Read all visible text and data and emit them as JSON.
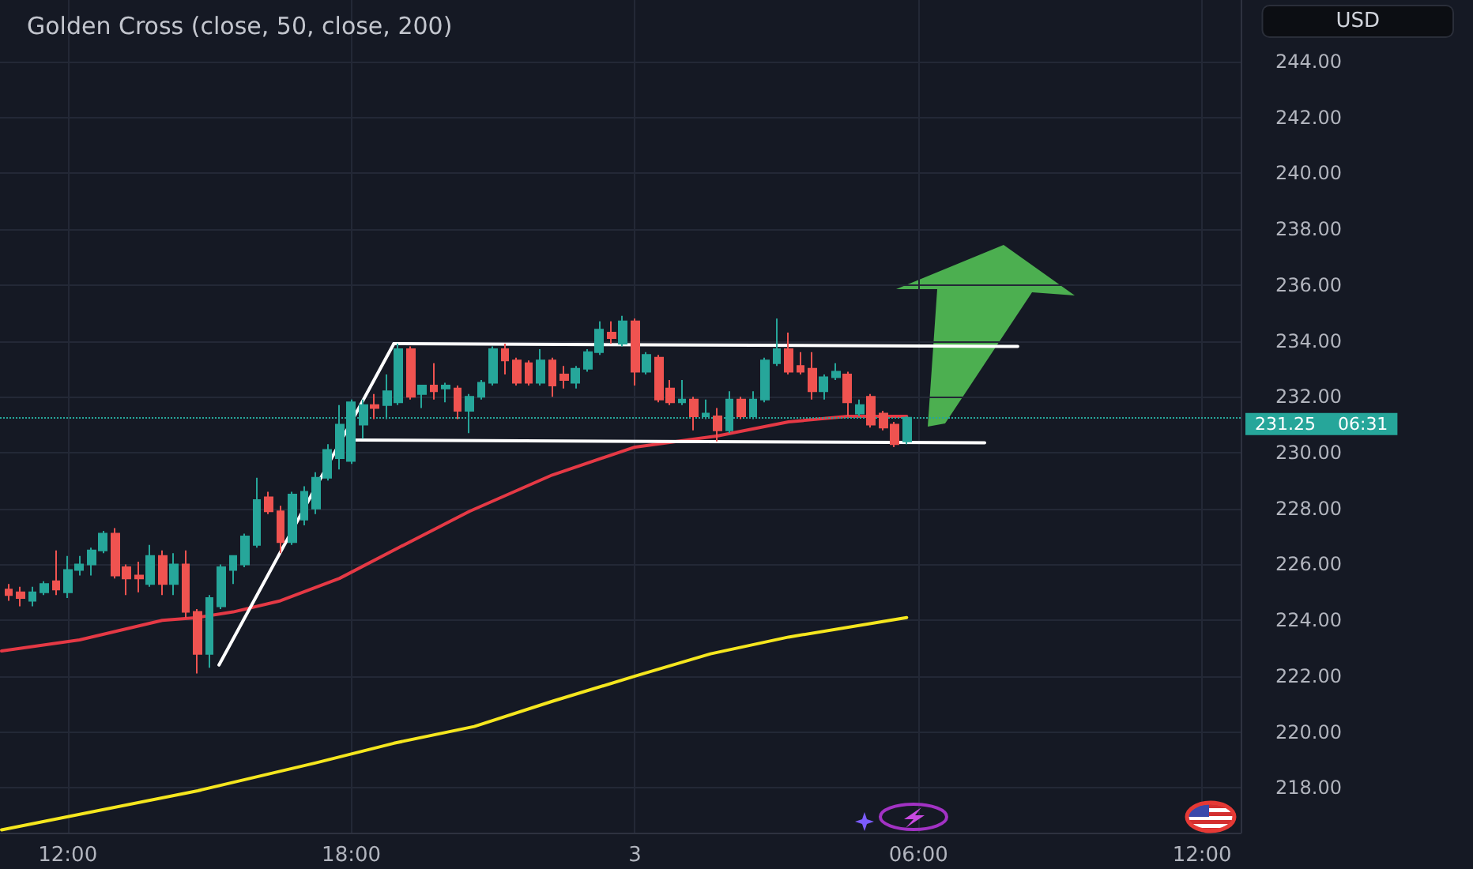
{
  "chart_data": {
    "type": "candlestick",
    "title": "Golden Cross (close, 50, close, 200)",
    "ylabel": "USD",
    "x": [
      "--12-02T10:45",
      "--12-02T11:00",
      "--12-02T11:15",
      "--12-02T11:30",
      "--12-02T11:45",
      "--12-02T12:00",
      "--12-02T12:15",
      "--12-02T12:30",
      "--12-02T12:45",
      "--12-02T13:00",
      "--12-02T13:15",
      "--12-02T13:30",
      "--12-02T13:45",
      "--12-02T14:00",
      "--12-02T14:15",
      "--12-02T14:30",
      "--12-02T14:45",
      "--12-02T15:00",
      "--12-02T15:15",
      "--12-02T15:30",
      "--12-02T15:45",
      "--12-02T16:00",
      "--12-02T16:15",
      "--12-02T16:30",
      "--12-02T16:45",
      "--12-02T17:00",
      "--12-02T17:15",
      "--12-02T17:30",
      "--12-02T17:45",
      "--12-02T18:00",
      "--12-02T18:15",
      "--12-02T18:30",
      "--12-02T18:45",
      "--12-02T19:00",
      "--12-02T19:15",
      "--12-02T19:30",
      "--12-02T19:45",
      "--12-02T20:00",
      "--12-02T20:15",
      "--12-02T20:30",
      "--12-02T20:45",
      "--12-02T21:00",
      "--12-02T21:15",
      "--12-02T21:30",
      "--12-02T21:45",
      "--12-02T22:00",
      "--12-02T22:15",
      "--12-02T22:30",
      "--12-02T22:45",
      "--12-02T23:00",
      "--12-02T23:15",
      "--12-02T23:30",
      "--12-02T23:45",
      "--12-03T00:00",
      "--12-03T00:15",
      "--12-03T00:30",
      "--12-03T00:45",
      "--12-03T01:00",
      "--12-03T01:15",
      "--12-03T01:30",
      "--12-03T01:45",
      "--12-03T02:00",
      "--12-03T02:15",
      "--12-03T02:30",
      "--12-03T02:45",
      "--12-03T03:00",
      "--12-03T03:15",
      "--12-03T03:30",
      "--12-03T03:45",
      "--12-03T04:00",
      "--12-03T04:15",
      "--12-03T04:30",
      "--12-03T04:45",
      "--12-03T05:00",
      "--12-03T05:15",
      "--12-03T05:30",
      "--12-03T05:45"
    ],
    "ohlc": [
      [
        225.1,
        225.3,
        224.7,
        224.9
      ],
      [
        225.0,
        225.2,
        224.5,
        224.8
      ],
      [
        224.7,
        225.2,
        224.5,
        225.0
      ],
      [
        225.0,
        225.4,
        224.9,
        225.3
      ],
      [
        225.4,
        226.5,
        224.9,
        225.1
      ],
      [
        225.0,
        226.3,
        224.8,
        225.8
      ],
      [
        225.8,
        226.3,
        225.6,
        226.0
      ],
      [
        226.0,
        226.6,
        225.6,
        226.5
      ],
      [
        226.5,
        227.2,
        226.4,
        227.1
      ],
      [
        227.1,
        227.3,
        225.5,
        225.6
      ],
      [
        225.9,
        226.0,
        224.9,
        225.5
      ],
      [
        225.6,
        226.1,
        225.0,
        225.5
      ],
      [
        225.3,
        226.7,
        225.2,
        226.3
      ],
      [
        226.3,
        226.5,
        224.9,
        225.3
      ],
      [
        225.3,
        226.4,
        224.9,
        226.0
      ],
      [
        226.0,
        226.5,
        224.1,
        224.3
      ],
      [
        224.3,
        224.4,
        222.1,
        222.8
      ],
      [
        222.8,
        224.9,
        222.3,
        224.8
      ],
      [
        224.5,
        226.0,
        224.4,
        225.9
      ],
      [
        225.8,
        226.3,
        225.3,
        226.3
      ],
      [
        226.0,
        227.1,
        225.9,
        227.0
      ],
      [
        226.7,
        229.1,
        226.6,
        228.3
      ],
      [
        228.4,
        228.6,
        227.8,
        227.9
      ],
      [
        227.9,
        228.1,
        226.4,
        226.8
      ],
      [
        226.8,
        228.6,
        226.7,
        228.5
      ],
      [
        227.6,
        228.8,
        227.4,
        228.6
      ],
      [
        228.0,
        229.3,
        227.8,
        229.1
      ],
      [
        229.1,
        230.3,
        229.0,
        230.1
      ],
      [
        229.8,
        231.7,
        229.4,
        231.0
      ],
      [
        229.7,
        231.9,
        229.6,
        231.8
      ],
      [
        231.0,
        231.9,
        230.5,
        231.7
      ],
      [
        231.7,
        232.1,
        231.2,
        231.6
      ],
      [
        231.7,
        232.8,
        231.2,
        232.2
      ],
      [
        231.8,
        233.9,
        231.7,
        233.7
      ],
      [
        233.7,
        233.8,
        231.9,
        232.0
      ],
      [
        232.1,
        232.4,
        231.6,
        232.4
      ],
      [
        232.4,
        233.2,
        231.9,
        232.2
      ],
      [
        232.3,
        232.5,
        231.8,
        232.4
      ],
      [
        232.3,
        232.4,
        231.2,
        231.5
      ],
      [
        231.5,
        232.1,
        230.7,
        232.0
      ],
      [
        232.0,
        232.6,
        231.9,
        232.5
      ],
      [
        232.5,
        233.8,
        232.4,
        233.7
      ],
      [
        233.7,
        233.9,
        232.8,
        233.3
      ],
      [
        233.3,
        233.4,
        232.4,
        232.5
      ],
      [
        233.2,
        233.3,
        232.4,
        232.5
      ],
      [
        232.5,
        233.7,
        232.4,
        233.3
      ],
      [
        233.3,
        233.4,
        232.0,
        232.4
      ],
      [
        232.8,
        233.1,
        232.3,
        232.6
      ],
      [
        232.5,
        233.1,
        232.3,
        233.0
      ],
      [
        233.0,
        233.7,
        232.9,
        233.6
      ],
      [
        233.6,
        234.7,
        233.5,
        234.4
      ],
      [
        234.3,
        234.7,
        233.9,
        234.1
      ],
      [
        233.9,
        234.9,
        233.8,
        234.7
      ],
      [
        234.7,
        234.8,
        232.4,
        232.9
      ],
      [
        232.9,
        233.6,
        232.8,
        233.5
      ],
      [
        233.4,
        233.5,
        231.8,
        231.9
      ],
      [
        232.3,
        232.6,
        231.7,
        231.8
      ],
      [
        231.8,
        232.6,
        231.7,
        231.9
      ],
      [
        231.9,
        232.0,
        230.8,
        231.3
      ],
      [
        231.3,
        231.9,
        231.2,
        231.4
      ],
      [
        231.3,
        231.6,
        230.4,
        230.8
      ],
      [
        230.8,
        232.2,
        230.7,
        231.9
      ],
      [
        231.9,
        232.0,
        231.2,
        231.3
      ],
      [
        231.3,
        232.2,
        231.2,
        231.9
      ],
      [
        231.9,
        233.4,
        231.8,
        233.3
      ],
      [
        233.2,
        234.8,
        233.1,
        233.7
      ],
      [
        233.7,
        234.3,
        232.8,
        232.9
      ],
      [
        233.1,
        233.6,
        232.8,
        232.9
      ],
      [
        233.0,
        233.6,
        231.9,
        232.2
      ],
      [
        232.2,
        232.8,
        231.9,
        232.7
      ],
      [
        232.7,
        233.2,
        232.6,
        232.9
      ],
      [
        232.8,
        232.9,
        231.3,
        231.8
      ],
      [
        231.4,
        231.9,
        231.3,
        231.7
      ],
      [
        232.0,
        232.1,
        230.9,
        231.0
      ],
      [
        231.4,
        231.5,
        230.8,
        230.9
      ],
      [
        231.0,
        231.1,
        230.2,
        230.3
      ],
      [
        230.4,
        231.3,
        230.3,
        231.25
      ]
    ],
    "colors": [
      "#ef5350",
      "#ef5350",
      "#26a69a",
      "#26a69a",
      "#ef5350",
      "#26a69a",
      "#26a69a",
      "#26a69a",
      "#26a69a",
      "#ef5350",
      "#ef5350",
      "#ef5350",
      "#26a69a",
      "#ef5350",
      "#26a69a",
      "#ef5350",
      "#ef5350",
      "#26a69a",
      "#26a69a",
      "#26a69a",
      "#26a69a",
      "#26a69a",
      "#ef5350",
      "#ef5350",
      "#26a69a",
      "#26a69a",
      "#26a69a",
      "#26a69a",
      "#26a69a",
      "#26a69a",
      "#26a69a",
      "#ef5350",
      "#26a69a",
      "#26a69a",
      "#ef5350",
      "#26a69a",
      "#ef5350",
      "#26a69a",
      "#ef5350",
      "#26a69a",
      "#26a69a",
      "#26a69a",
      "#ef5350",
      "#ef5350",
      "#ef5350",
      "#26a69a",
      "#ef5350",
      "#ef5350",
      "#26a69a",
      "#26a69a",
      "#26a69a",
      "#ef5350",
      "#26a69a",
      "#ef5350",
      "#26a69a",
      "#ef5350",
      "#ef5350",
      "#26a69a",
      "#ef5350",
      "#26a69a",
      "#ef5350",
      "#26a69a",
      "#ef5350",
      "#26a69a",
      "#26a69a",
      "#26a69a",
      "#ef5350",
      "#ef5350",
      "#ef5350",
      "#26a69a",
      "#26a69a",
      "#ef5350",
      "#26a69a",
      "#ef5350",
      "#ef5350",
      "#ef5350",
      "#26a69a"
    ],
    "series": [
      {
        "type": "line",
        "color": "#e53945",
        "x": [
          "--12-02T10:36",
          "--12-02T12:15",
          "--12-02T14:00",
          "--12-02T14:45",
          "--12-02T15:30",
          "--12-02T16:30",
          "--12-02T17:45",
          "--12-02T19:00",
          "--12-02T20:30",
          "--12-02T22:15",
          "--12-03T00:00",
          "--12-03T01:45",
          "--12-03T03:15",
          "--12-03T04:30",
          "--12-03T05:45"
        ],
        "values": [
          222.9,
          223.3,
          224.0,
          224.1,
          224.3,
          224.7,
          225.5,
          226.6,
          227.9,
          229.2,
          230.2,
          230.6,
          231.1,
          231.3,
          231.3
        ]
      },
      {
        "type": "line",
        "color": "#f5e61e",
        "x": [
          "--12-02T10:36",
          "--12-02T14:45",
          "--12-02T17:15",
          "--12-02T18:54",
          "--12-02T20:36",
          "--12-02T22:15",
          "--12-03T00:00",
          "--12-03T01:36",
          "--12-03T03:15",
          "--12-03T05:45"
        ],
        "values": [
          216.5,
          217.9,
          218.9,
          219.6,
          220.2,
          221.1,
          222.0,
          222.8,
          223.4,
          224.1
        ]
      },
      {
        "type": "line",
        "color": "#ffffff",
        "x": [
          "--12-02T15:12",
          "--12-02T18:54"
        ],
        "values": [
          222.4,
          233.9
        ]
      },
      {
        "type": "line",
        "color": "#ffffff",
        "x": [
          "--12-02T18:54",
          "--12-03T08:06"
        ],
        "values": [
          233.9,
          233.8
        ]
      },
      {
        "type": "line",
        "color": "#ffffff",
        "x": [
          "--12-02T18:06",
          "--12-03T07:24"
        ],
        "values": [
          230.45,
          230.35
        ]
      }
    ],
    "xlim": [
      "--12-02T10:34",
      "--12-03T12:49"
    ],
    "xticks": [
      {
        "value": "--12-02T12:00",
        "label": "12:00"
      },
      {
        "value": "--12-02T18:00",
        "label": "18:00"
      },
      {
        "value": "--12-03T00:00",
        "label": "3"
      },
      {
        "value": "--12-03T06:00",
        "label": "06:00"
      },
      {
        "value": "--12-03T12:00",
        "label": "12:00"
      }
    ],
    "ylim": [
      216.4,
      246.2
    ],
    "yticks": [
      {
        "value": 218,
        "label": "218.00"
      },
      {
        "value": 220,
        "label": "220.00"
      },
      {
        "value": 222,
        "label": "222.00"
      },
      {
        "value": 224,
        "label": "224.00"
      },
      {
        "value": 226,
        "label": "226.00"
      },
      {
        "value": 228,
        "label": "228.00"
      },
      {
        "value": 230,
        "label": "230.00"
      },
      {
        "value": 232,
        "label": "232.00"
      },
      {
        "value": 234,
        "label": "234.00"
      },
      {
        "value": 236,
        "label": "236.00"
      },
      {
        "value": 238,
        "label": "238.00"
      },
      {
        "value": 240,
        "label": "240.00"
      },
      {
        "value": 242,
        "label": "242.00"
      },
      {
        "value": 244,
        "label": "244.00"
      }
    ],
    "ref_lines": [
      {
        "axis": "y",
        "value": 231.25,
        "label": "231.25",
        "color": "#26a69a",
        "line_style": "dotted"
      }
    ],
    "annotations": [
      "06:31"
    ],
    "grid": true,
    "marker": "none"
  }
}
